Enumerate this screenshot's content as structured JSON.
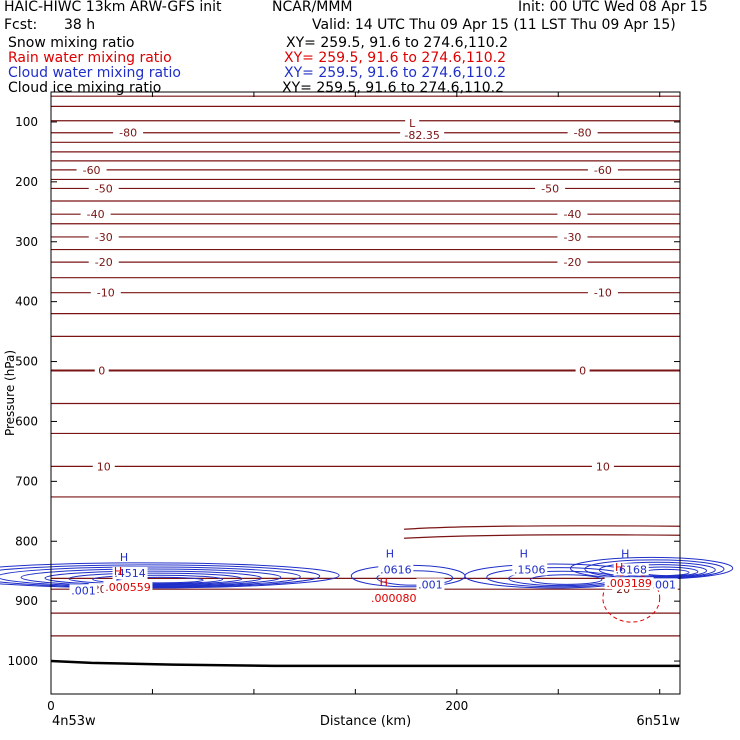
{
  "header": {
    "title_left": "HAIC-HIWC 13km ARW-GFS init",
    "institution": "NCAR/MMM",
    "init": "Init: 00 UTC Wed 08 Apr 15",
    "fcst_label": "Fcst:",
    "fcst_value": "38 h",
    "valid": "Valid: 14 UTC Thu 09 Apr 15 (11 LST Thu 09 Apr 15)"
  },
  "fields": [
    {
      "name": "Snow mixing ratio",
      "xy": "XY= 259.5, 91.6 to 274.6,110.2",
      "color": "#000000"
    },
    {
      "name": "Rain water mixing ratio",
      "xy": "XY= 259.5, 91.6 to 274.6,110.2",
      "color": "#dd0000"
    },
    {
      "name": "Cloud water mixing ratio",
      "xy": "XY= 259.5, 91.6 to 274.6,110.2",
      "color": "#1f2fc8"
    },
    {
      "name": "Cloud ice mixing ratio",
      "xy": "XY= 259.5, 91.6 to 274.6,110.2",
      "color": "#000000"
    }
  ],
  "chart_data": {
    "type": "line",
    "xlabel": "Distance (km)",
    "ylabel": "Pressure (hPa)",
    "xlim": [
      0,
      310
    ],
    "ylim": [
      1055,
      50
    ],
    "y_log": false,
    "x_ticks": [
      0,
      200
    ],
    "x_tick_minor_step": 50,
    "y_ticks": [
      100,
      200,
      300,
      400,
      500,
      600,
      700,
      800,
      900,
      1000
    ],
    "x_end_labels": [
      "4n53w",
      "6n51w"
    ],
    "colors": {
      "temperature": "#7a1414",
      "cloud_water": "#1f2fc8",
      "rain": "#dd0000",
      "ground": "#000000"
    },
    "temperature_isotherms": [
      {
        "p": 57
      },
      {
        "p": 74
      },
      {
        "p": 98,
        "label": "L",
        "extreme": true
      },
      {
        "p": 118,
        "label": "-80",
        "label_x": [
          38,
          262
        ]
      },
      {
        "p": 134
      },
      {
        "p": 150
      },
      {
        "p": 165
      },
      {
        "p": 180,
        "label": "-60",
        "label_x": [
          20,
          272
        ]
      },
      {
        "p": 196
      },
      {
        "p": 211,
        "label": "-50",
        "label_x": [
          26,
          246
        ]
      },
      {
        "p": 232
      },
      {
        "p": 254,
        "label": "-40",
        "label_x": [
          22,
          257
        ]
      },
      {
        "p": 270
      },
      {
        "p": 292,
        "label": "-30",
        "label_x": [
          26,
          257
        ]
      },
      {
        "p": 313
      },
      {
        "p": 334,
        "label": "-20",
        "label_x": [
          26,
          257
        ]
      },
      {
        "p": 360
      },
      {
        "p": 385,
        "label": "-10",
        "label_x": [
          27,
          272
        ]
      },
      {
        "p": 420
      },
      {
        "p": 458
      },
      {
        "p": 515,
        "label": "0",
        "label_x": [
          25,
          262
        ]
      },
      {
        "p": 570
      },
      {
        "p": 620
      },
      {
        "p": 675,
        "label": "10",
        "label_x": [
          26,
          272
        ]
      },
      {
        "p": 726
      },
      {
        "p": 880,
        "label": "20",
        "label_x": [
          24,
          282
        ]
      },
      {
        "p": 920
      },
      {
        "p": 958
      }
    ],
    "extreme_value": {
      "label": "L",
      "value": "-82.35",
      "x": 178,
      "p": 98
    },
    "cloud_water_maxima": [
      {
        "label": "H",
        "value": ".4514",
        "x": 36,
        "p": 833
      },
      {
        "label": "H",
        "value": ".0616",
        "x": 167,
        "p": 827
      },
      {
        "label": "H",
        "value": ".1506",
        "x": 233,
        "p": 827
      },
      {
        "label": "H",
        "value": ".6168",
        "x": 283,
        "p": 827
      }
    ],
    "cloud_water_labels": [
      {
        "value": ".001",
        "x": 16,
        "p": 882
      },
      {
        "value": ".001",
        "x": 187,
        "p": 872
      },
      {
        "value": ".001",
        "x": 302,
        "p": 872
      }
    ],
    "rain_maxima": [
      {
        "label": "H",
        "value": ".000559",
        "x": 33,
        "p": 856
      },
      {
        "label": "H",
        "value": ".000080",
        "x": 164,
        "p": 875
      },
      {
        "label": "H",
        "value": ".003189",
        "x": 280,
        "p": 850
      }
    ],
    "ground_pressure": [
      [
        0,
        1000
      ],
      [
        20,
        1003
      ],
      [
        60,
        1006
      ],
      [
        110,
        1008
      ],
      [
        160,
        1008
      ],
      [
        310,
        1008
      ]
    ]
  }
}
